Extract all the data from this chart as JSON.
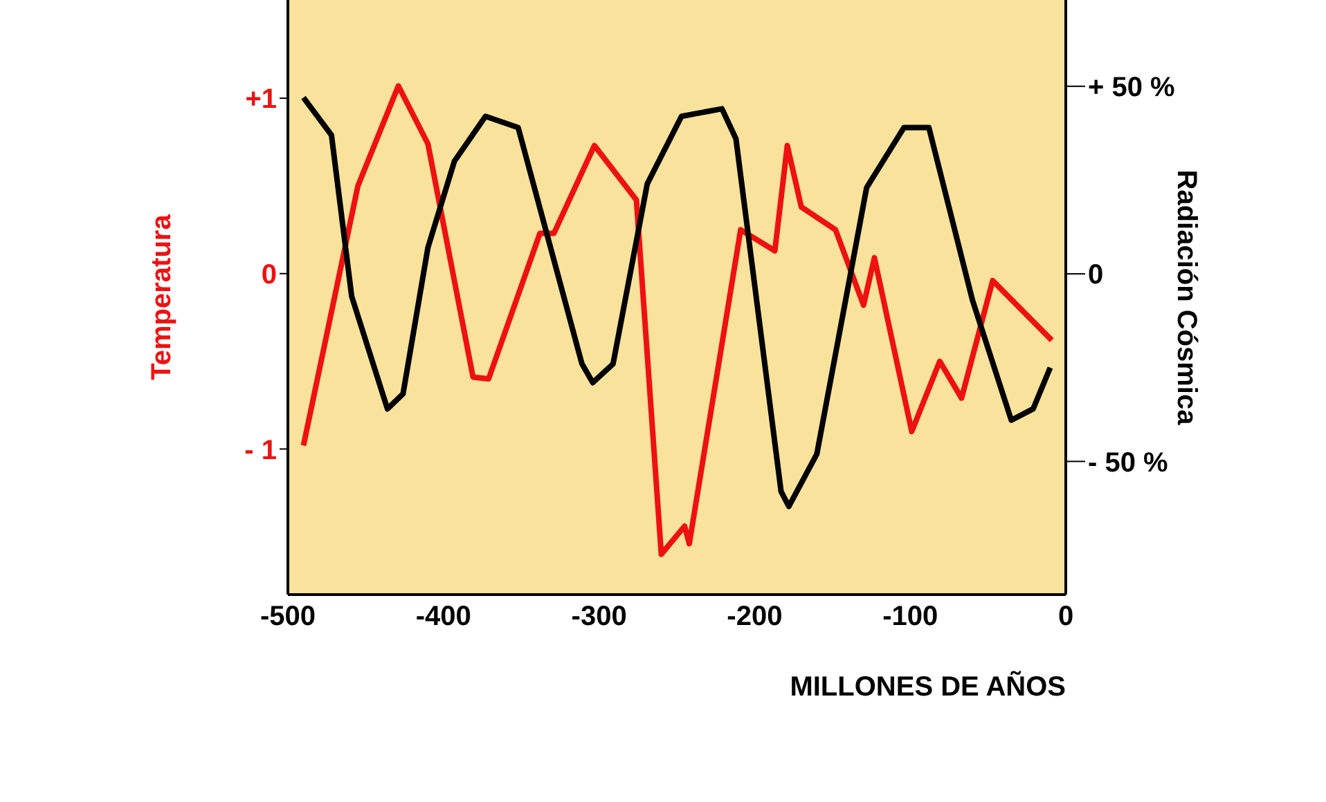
{
  "chart_data": {
    "type": "line",
    "xlabel": "MILLONES DE AÑOS",
    "ylabel": "Temperatura",
    "y2label": "Radiación Cósmica",
    "xlim": [
      -500,
      0
    ],
    "xticks": [
      -500,
      -400,
      -300,
      -200,
      -100,
      0
    ],
    "ylim": [
      -1.83,
      1.56
    ],
    "yticks": [
      {
        "value": 1,
        "label": "+1"
      },
      0,
      {
        "value": -1,
        "label": "- 1"
      }
    ],
    "y2lim": [
      -85.5,
      73
    ],
    "y2ticks": [
      {
        "value": 50,
        "label": "+ 50 %"
      },
      0,
      {
        "value": -50,
        "label": "- 50 %"
      }
    ],
    "grid": false,
    "legend": false,
    "marker": "none",
    "line_style": "solid",
    "series": [
      {
        "color": "#ee1111",
        "x": [
          -490,
          -455,
          -429,
          -410,
          -381,
          -371,
          -338,
          -329,
          -303,
          -276,
          -260,
          -245,
          -242,
          -209,
          -187,
          -179,
          -170,
          -148,
          -130,
          -123,
          -99,
          -81,
          -67,
          -47,
          -9
        ],
        "values": [
          -0.98,
          0.5,
          1.07,
          0.74,
          -0.59,
          -0.6,
          0.23,
          0.23,
          0.73,
          0.42,
          -1.6,
          -1.44,
          -1.54,
          0.25,
          0.13,
          0.73,
          0.38,
          0.25,
          -0.18,
          0.09,
          -0.9,
          -0.5,
          -0.71,
          -0.04,
          -0.38
        ]
      },
      {
        "color": "#000000",
        "axis": "y2",
        "x": [
          -490,
          -472,
          -459,
          -436,
          -426,
          -410,
          -393,
          -373,
          -352,
          -311,
          -304,
          -291,
          -269,
          -247,
          -221,
          -212,
          -183,
          -178,
          -160,
          -128,
          -104,
          -88,
          -60,
          -35,
          -21,
          -10
        ],
        "values": [
          47,
          37,
          -6,
          -36,
          -32,
          7,
          30,
          42,
          39,
          -24,
          -29,
          -24,
          24,
          42,
          44,
          36,
          -58,
          -62,
          -48,
          23,
          39,
          39,
          -7,
          -39,
          -36,
          -25
        ]
      }
    ]
  }
}
